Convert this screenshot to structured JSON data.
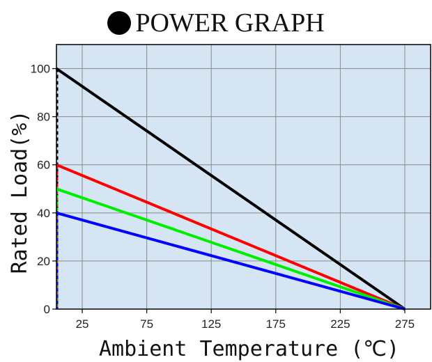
{
  "chart_data": {
    "type": "line",
    "title": "POWER GRAPH",
    "xlabel": "Ambient Temperature (℃)",
    "ylabel": "Rated Load(%)",
    "xlim": [
      5,
      295
    ],
    "ylim": [
      0,
      110
    ],
    "x_ticks": [
      25,
      75,
      125,
      175,
      225,
      275
    ],
    "y_ticks": [
      0,
      20,
      40,
      60,
      80,
      100
    ],
    "grid": true,
    "background": "#d5e5f3",
    "series": [
      {
        "color": "#000000",
        "points": [
          [
            5,
            100
          ],
          [
            275,
            0
          ]
        ]
      },
      {
        "color": "#ff0000",
        "points": [
          [
            5,
            60
          ],
          [
            275,
            0
          ]
        ]
      },
      {
        "color": "#00ee00",
        "points": [
          [
            5,
            50
          ],
          [
            275,
            0
          ]
        ]
      },
      {
        "color": "#0000ff",
        "points": [
          [
            5,
            40
          ],
          [
            275,
            0
          ]
        ]
      }
    ]
  }
}
